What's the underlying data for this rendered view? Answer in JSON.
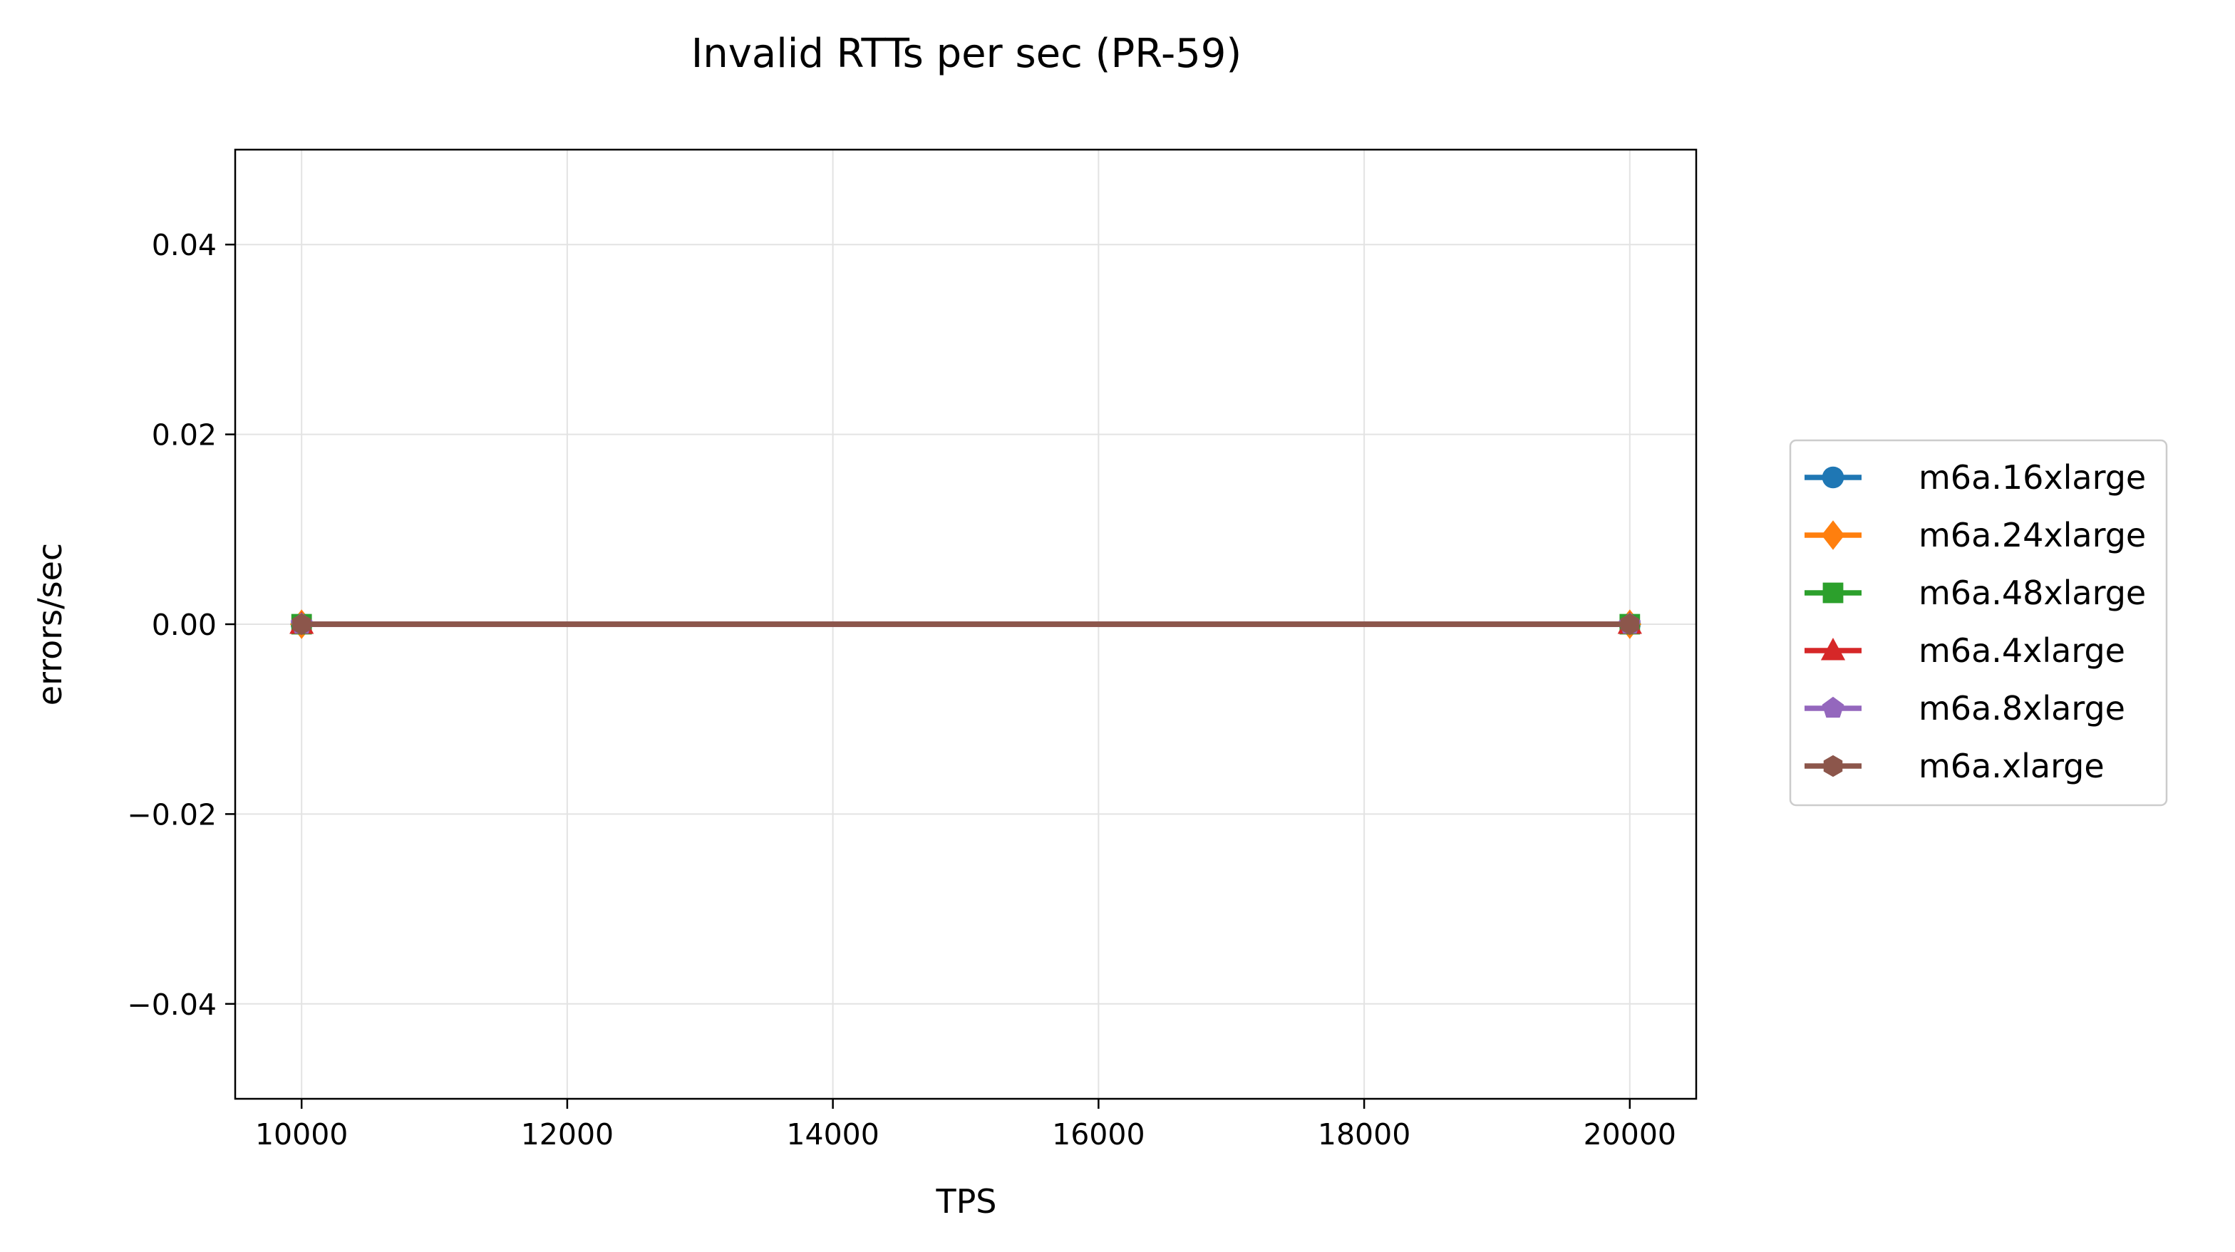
{
  "chart_data": {
    "type": "line",
    "title": "Invalid RTTs per sec (PR-59)",
    "xlabel": "TPS",
    "ylabel": "errors/sec",
    "xlim": [
      9500,
      20500
    ],
    "ylim": [
      -0.05,
      0.05
    ],
    "x_ticks": [
      10000,
      12000,
      14000,
      16000,
      18000,
      20000
    ],
    "x_tick_labels": [
      "10000",
      "12000",
      "14000",
      "16000",
      "18000",
      "20000"
    ],
    "y_ticks": [
      -0.04,
      -0.02,
      0.0,
      0.02,
      0.04
    ],
    "y_tick_labels": [
      "−0.04",
      "−0.02",
      "0.00",
      "0.02",
      "0.04"
    ],
    "grid": true,
    "legend_position": "outside-right",
    "x": [
      10000,
      20000
    ],
    "series": [
      {
        "name": "m6a.16xlarge",
        "values": [
          0,
          0
        ],
        "color": "#1f77b4",
        "marker": "circle"
      },
      {
        "name": "m6a.24xlarge",
        "values": [
          0,
          0
        ],
        "color": "#ff7f0e",
        "marker": "diamond"
      },
      {
        "name": "m6a.48xlarge",
        "values": [
          0,
          0
        ],
        "color": "#2ca02c",
        "marker": "square"
      },
      {
        "name": "m6a.4xlarge",
        "values": [
          0,
          0
        ],
        "color": "#d62728",
        "marker": "triangle"
      },
      {
        "name": "m6a.8xlarge",
        "values": [
          0,
          0
        ],
        "color": "#9467bd",
        "marker": "pentagon"
      },
      {
        "name": "m6a.xlarge",
        "values": [
          0,
          0
        ],
        "color": "#8c564b",
        "marker": "hexagon"
      }
    ]
  }
}
